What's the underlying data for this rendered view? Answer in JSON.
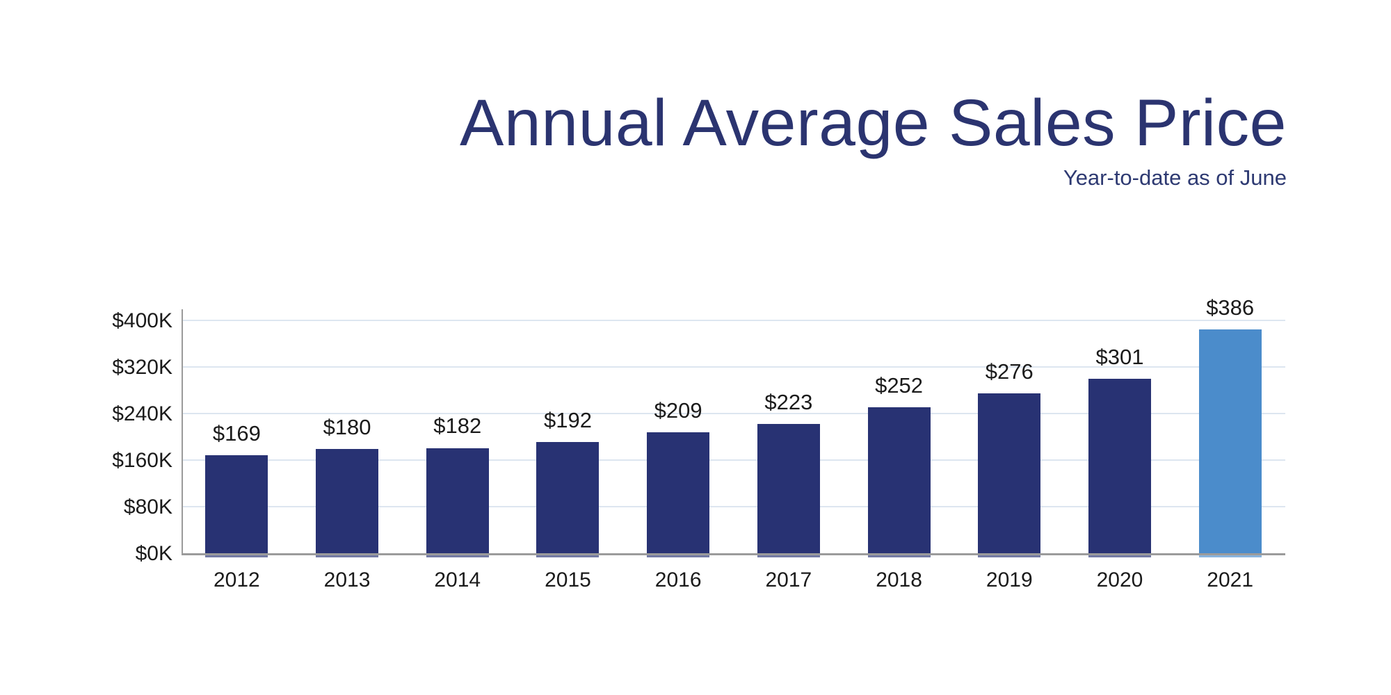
{
  "chart_data": {
    "type": "bar",
    "title": "Annual Average Sales Price",
    "subtitle": "Year-to-date as of June",
    "xlabel": "",
    "ylabel": "",
    "categories": [
      "2012",
      "2013",
      "2014",
      "2015",
      "2016",
      "2017",
      "2018",
      "2019",
      "2020",
      "2021"
    ],
    "values": [
      169,
      180,
      182,
      192,
      209,
      223,
      252,
      276,
      301,
      386
    ],
    "bar_labels": [
      "$169",
      "$180",
      "$182",
      "$192",
      "$209",
      "$223",
      "$252",
      "$276",
      "$301",
      "$386"
    ],
    "y_ticks": [
      "$0K",
      "$80K",
      "$160K",
      "$240K",
      "$320K",
      "$400K"
    ],
    "y_tick_values": [
      0,
      80,
      160,
      240,
      320,
      400
    ],
    "ylim": [
      0,
      400
    ],
    "grid": true,
    "legend": "none",
    "highlight_index": 9,
    "colors": {
      "bar": "#283273",
      "bar_highlight": "#4b8ccb",
      "gridline": "#dde6f0",
      "axis": "#9b9b9b",
      "tick_label": "#1b1b1b",
      "title": "#2b3470",
      "subtitle": "#2e3a72"
    }
  }
}
